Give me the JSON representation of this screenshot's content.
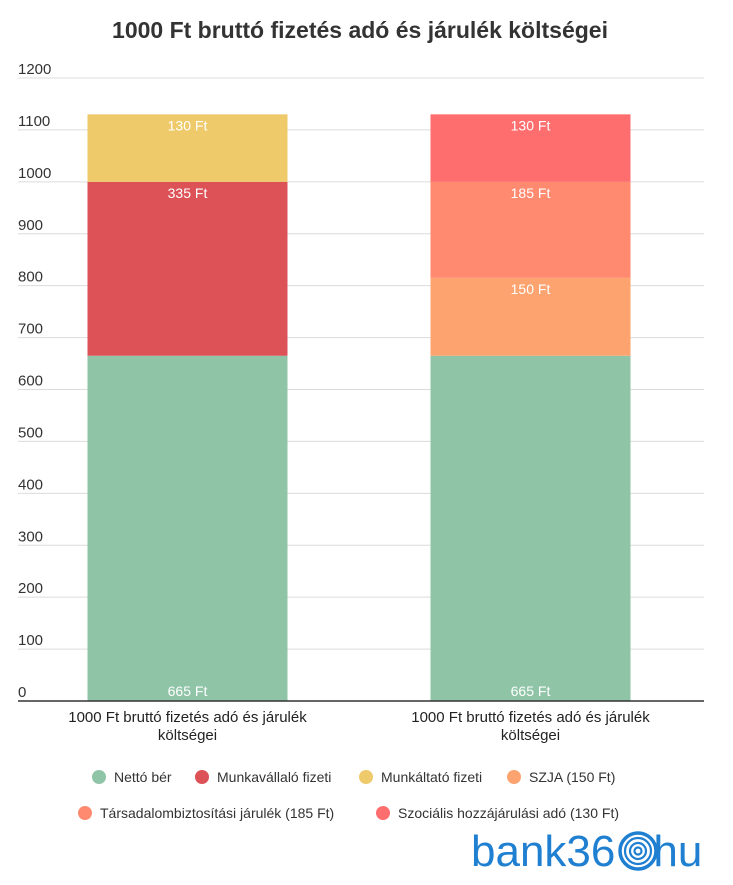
{
  "chart_data": {
    "type": "bar",
    "stacked": true,
    "title": "1000 Ft bruttó fizetés adó és járulék költségei",
    "xlabel": "",
    "ylabel": "",
    "ylim": [
      0,
      1200
    ],
    "yticks": [
      0,
      100,
      200,
      300,
      400,
      500,
      600,
      700,
      800,
      900,
      1000,
      1100,
      1200
    ],
    "grid": true,
    "legend": "bottom",
    "categories": [
      "1000 Ft bruttó fizetés adó és járulék költségei",
      "1000 Ft bruttó fizetés adó és járulék költségei"
    ],
    "series": [
      {
        "name": "Nettó bér",
        "color": "#8fc4a7",
        "values": [
          665,
          665
        ],
        "labels": [
          "665 Ft",
          "665 Ft"
        ]
      },
      {
        "name": "Munkavállaló fizeti",
        "color": "#dc5257",
        "values": [
          335,
          0
        ],
        "labels": [
          "335 Ft",
          ""
        ]
      },
      {
        "name": "Munkáltató fizeti",
        "color": "#efca6a",
        "values": [
          130,
          0
        ],
        "labels": [
          "130 Ft",
          ""
        ]
      },
      {
        "name": "SZJA (150 Ft)",
        "color": "#fda36f",
        "values": [
          0,
          150
        ],
        "labels": [
          "",
          "150 Ft"
        ]
      },
      {
        "name": "Társadalombiztosítási járulék (185 Ft)",
        "color": "#ff8a6f",
        "values": [
          0,
          185
        ],
        "labels": [
          "",
          "185 Ft"
        ]
      },
      {
        "name": "Szociális hozzájárulási adó (130 Ft)",
        "color": "#ff6e6f",
        "values": [
          0,
          130
        ],
        "labels": [
          "",
          "130 Ft"
        ]
      }
    ]
  },
  "brand": {
    "logo_text": "bank360hu",
    "logo_prefix": "bank36",
    "logo_suffix": "hu",
    "logo_color": "#1f7fd1"
  }
}
